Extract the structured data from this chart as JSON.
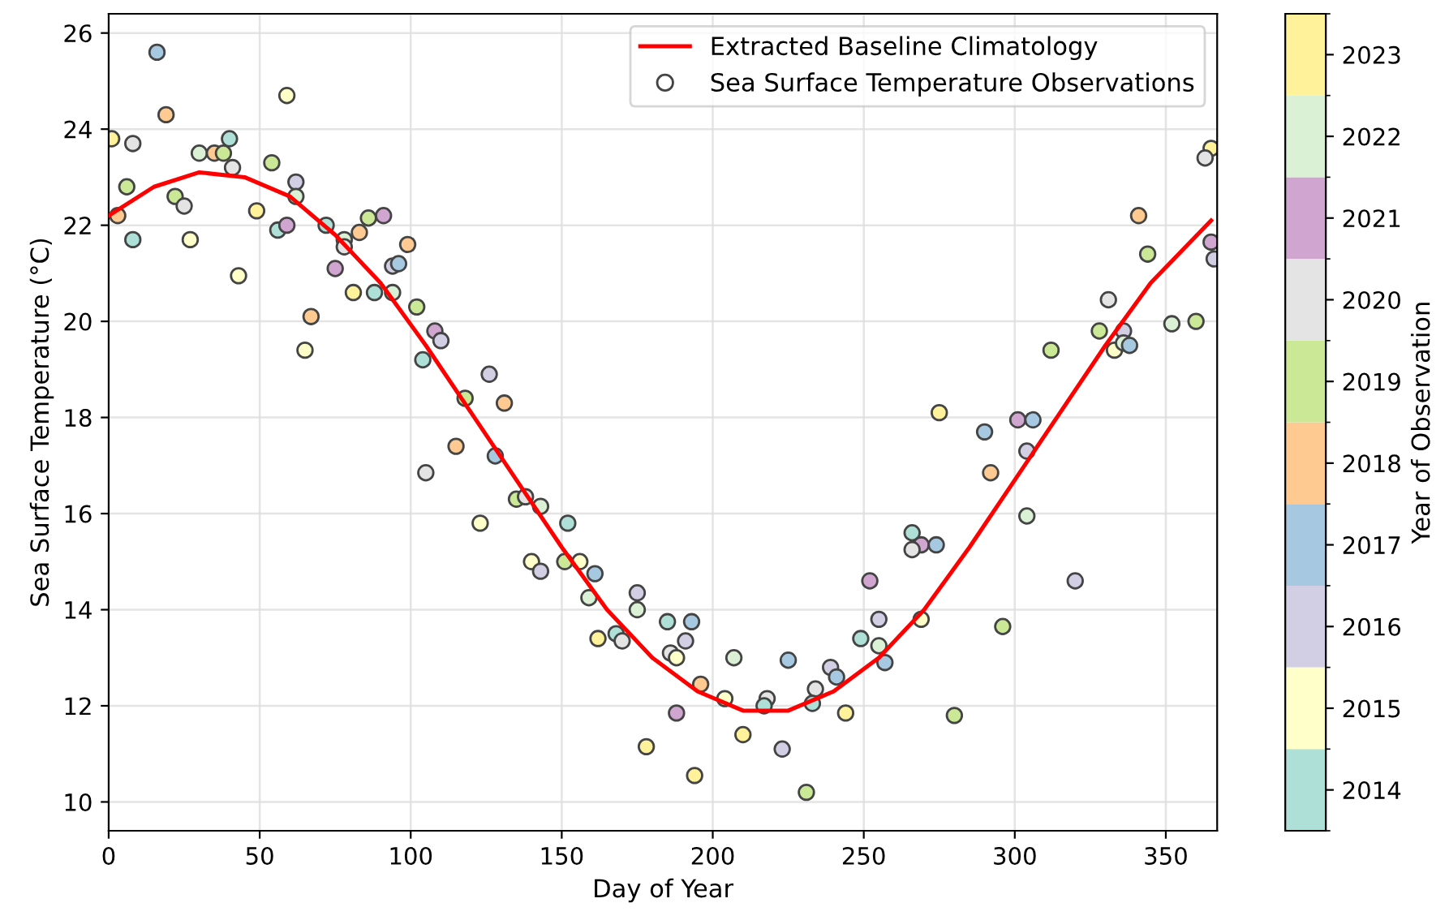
{
  "chart_data": {
    "type": "scatter",
    "xlabel": "Day of Year",
    "ylabel": "Sea Surface Temperature (°C)",
    "clabel": "Year of Observation",
    "xlim": [
      0,
      367
    ],
    "ylim": [
      9.4,
      26.4
    ],
    "xticks": [
      0,
      50,
      100,
      150,
      200,
      250,
      300,
      350
    ],
    "yticks": [
      10,
      12,
      14,
      16,
      18,
      20,
      22,
      24,
      26
    ],
    "clim": [
      2013.5,
      2023.5
    ],
    "cticks": [
      2014,
      2015,
      2016,
      2017,
      2018,
      2019,
      2020,
      2021,
      2022,
      2023
    ],
    "colors": [
      "#afe0d8",
      "#ffffca",
      "#d2cfe5",
      "#a6c8e0",
      "#feca91",
      "#cae896",
      "#e4e4e4",
      "#d0a6d1",
      "#dbf1d6",
      "#fff29a"
    ],
    "grid": true,
    "legend": "top right",
    "marker": "circle",
    "series": [
      {
        "name": "Extracted Baseline Climatology",
        "type": "line",
        "color": "#ff0000",
        "line_style": "solid",
        "marker": "none",
        "x": [
          0,
          15,
          30,
          45,
          60,
          75,
          90,
          105,
          120,
          135,
          150,
          165,
          180,
          195,
          210,
          225,
          240,
          255,
          270,
          285,
          300,
          315,
          330,
          345,
          365
        ],
        "values": [
          22.2,
          22.8,
          23.1,
          23.0,
          22.6,
          21.8,
          20.8,
          19.5,
          18.1,
          16.7,
          15.3,
          14.0,
          13.0,
          12.3,
          11.9,
          11.9,
          12.3,
          13.0,
          14.0,
          15.3,
          16.7,
          18.1,
          19.5,
          20.8,
          22.1
        ]
      },
      {
        "name": "Sea Surface Temperature Observations",
        "color": "#444444",
        "x": [
          16,
          19,
          1,
          8,
          59,
          30,
          35,
          38,
          40,
          41,
          54,
          62,
          62,
          6,
          3,
          8,
          22,
          25,
          27,
          49,
          43,
          56,
          59,
          72,
          78,
          78,
          83,
          86,
          91,
          99,
          75,
          81,
          88,
          94,
          94,
          96,
          102,
          67,
          65,
          108,
          110,
          104,
          118,
          126,
          131,
          365,
          363,
          341,
          344,
          365,
          366,
          331,
          328,
          336,
          333,
          336,
          338,
          352,
          360,
          312,
          275,
          301,
          306,
          290,
          304,
          292,
          304,
          320,
          266,
          269,
          266,
          274,
          252,
          255,
          269,
          296,
          249,
          255,
          257,
          280,
          244,
          128,
          135,
          138,
          143,
          123,
          152,
          140,
          143,
          151,
          156,
          161,
          159,
          175,
          175,
          162,
          168,
          170,
          185,
          193,
          191,
          186,
          188,
          196,
          207,
          225,
          204,
          218,
          217,
          239,
          241,
          234,
          233,
          188,
          178,
          210,
          223,
          194,
          231,
          115,
          105
        ],
        "values": [
          25.6,
          24.3,
          23.8,
          23.7,
          24.7,
          23.5,
          23.5,
          23.5,
          23.8,
          23.2,
          23.3,
          22.9,
          22.6,
          22.8,
          22.2,
          21.7,
          22.6,
          22.4,
          21.7,
          22.3,
          20.95,
          21.9,
          22.0,
          22.0,
          21.7,
          21.55,
          21.85,
          22.15,
          22.2,
          21.6,
          21.1,
          20.6,
          20.6,
          20.6,
          21.15,
          21.2,
          20.3,
          20.1,
          19.4,
          19.8,
          19.6,
          19.2,
          18.4,
          18.9,
          18.3,
          23.6,
          23.4,
          22.2,
          21.4,
          21.65,
          21.3,
          20.45,
          19.8,
          19.8,
          19.4,
          19.55,
          19.5,
          19.95,
          20.0,
          19.4,
          18.1,
          17.95,
          17.95,
          17.7,
          17.3,
          16.85,
          15.95,
          14.6,
          15.6,
          15.35,
          15.25,
          15.35,
          14.6,
          13.8,
          13.8,
          13.65,
          13.4,
          13.25,
          12.9,
          11.8,
          11.85,
          17.2,
          16.3,
          16.35,
          16.15,
          15.8,
          15.8,
          15.0,
          14.8,
          15.0,
          15.0,
          14.75,
          14.25,
          14.35,
          14.0,
          13.4,
          13.5,
          13.35,
          13.75,
          13.75,
          13.35,
          13.1,
          13.0,
          12.45,
          13.0,
          12.95,
          12.15,
          12.15,
          12.0,
          12.8,
          12.6,
          12.35,
          12.05,
          11.85,
          11.15,
          11.4,
          11.1,
          10.55,
          10.2,
          17.4,
          16.85
        ],
        "cvalues": [
          2017,
          2018,
          2023,
          2020,
          2015,
          2022,
          2018,
          2019,
          2014,
          2020,
          2019,
          2016,
          2022,
          2019,
          2018,
          2014,
          2019,
          2020,
          2015,
          2023,
          2015,
          2014,
          2021,
          2014,
          2022,
          2020,
          2018,
          2019,
          2021,
          2018,
          2021,
          2023,
          2014,
          2022,
          2016,
          2017,
          2019,
          2018,
          2015,
          2021,
          2016,
          2014,
          2019,
          2016,
          2018,
          2023,
          2020,
          2018,
          2019,
          2021,
          2016,
          2020,
          2019,
          2016,
          2015,
          2022,
          2017,
          2022,
          2019,
          2019,
          2023,
          2021,
          2017,
          2017,
          2016,
          2018,
          2022,
          2016,
          2014,
          2021,
          2020,
          2017,
          2021,
          2016,
          2015,
          2019,
          2014,
          2022,
          2017,
          2019,
          2023,
          2017,
          2019,
          2020,
          2022,
          2015,
          2014,
          2015,
          2016,
          2019,
          2015,
          2017,
          2022,
          2016,
          2022,
          2023,
          2014,
          2020,
          2014,
          2017,
          2016,
          2020,
          2015,
          2018,
          2022,
          2017,
          2015,
          2020,
          2014,
          2016,
          2017,
          2020,
          2014,
          2021,
          2023,
          2023,
          2016,
          2023,
          2019,
          2018,
          2020
        ]
      }
    ]
  }
}
